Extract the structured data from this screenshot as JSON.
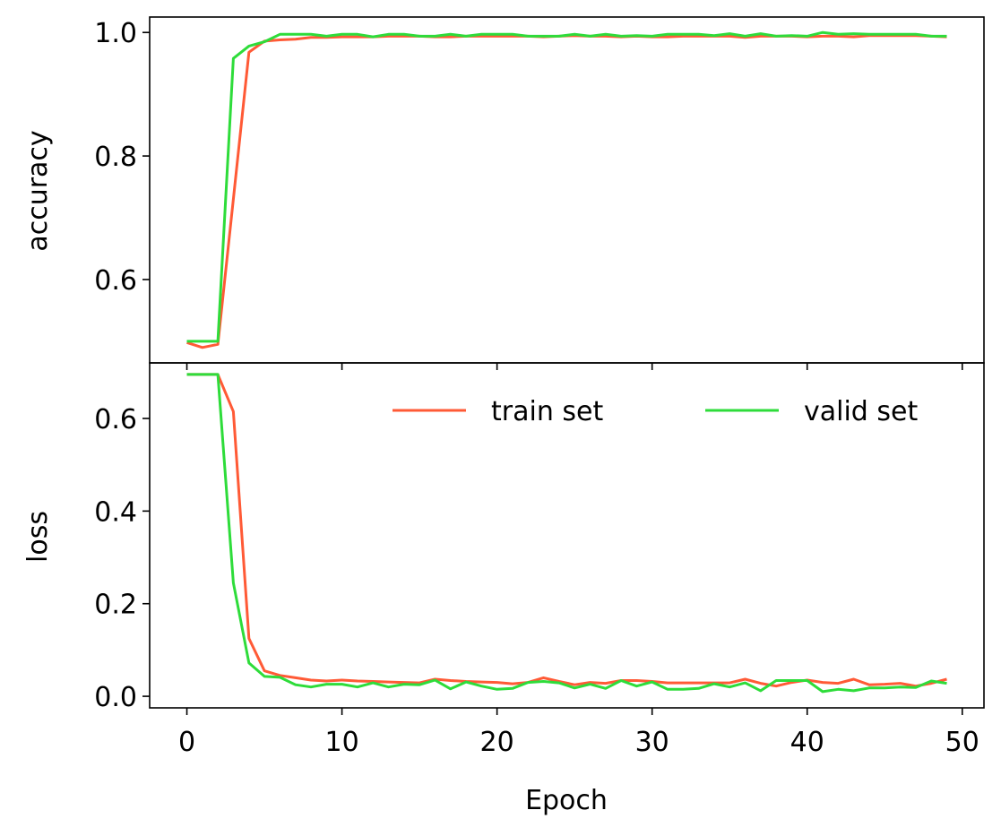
{
  "chart_data": [
    {
      "type": "line",
      "panel": "top",
      "ylabel": "accuracy",
      "xlabel": "",
      "xlim": [
        -2.4,
        51.4
      ],
      "ylim": [
        0.465,
        1.025
      ],
      "xticks": [
        0,
        10,
        20,
        30,
        40,
        50
      ],
      "xtick_labels_shown": false,
      "yticks": [
        0.6,
        0.8,
        1.0
      ],
      "ytick_labels": [
        "0.6",
        "0.8",
        "1.0"
      ],
      "grid": false,
      "series": [
        {
          "name": "train set",
          "color": "#ff5a36",
          "x": [
            0,
            1,
            2,
            3,
            4,
            5,
            6,
            7,
            8,
            9,
            10,
            11,
            12,
            13,
            14,
            15,
            16,
            17,
            18,
            19,
            20,
            21,
            22,
            23,
            24,
            25,
            26,
            27,
            28,
            29,
            30,
            31,
            32,
            33,
            34,
            35,
            36,
            37,
            38,
            39,
            40,
            41,
            42,
            43,
            44,
            45,
            46,
            47,
            48,
            49
          ],
          "y": [
            0.498,
            0.49,
            0.495,
            0.73,
            0.968,
            0.986,
            0.988,
            0.989,
            0.992,
            0.992,
            0.993,
            0.993,
            0.993,
            0.994,
            0.994,
            0.994,
            0.993,
            0.993,
            0.994,
            0.994,
            0.994,
            0.994,
            0.994,
            0.993,
            0.994,
            0.995,
            0.994,
            0.994,
            0.993,
            0.994,
            0.993,
            0.993,
            0.994,
            0.994,
            0.994,
            0.994,
            0.992,
            0.994,
            0.994,
            0.994,
            0.993,
            0.994,
            0.994,
            0.993,
            0.995,
            0.995,
            0.995,
            0.995,
            0.994,
            0.993
          ]
        },
        {
          "name": "valid set",
          "color": "#2edc3a",
          "x": [
            0,
            1,
            2,
            3,
            4,
            5,
            6,
            7,
            8,
            9,
            10,
            11,
            12,
            13,
            14,
            15,
            16,
            17,
            18,
            19,
            20,
            21,
            22,
            23,
            24,
            25,
            26,
            27,
            28,
            29,
            30,
            31,
            32,
            33,
            34,
            35,
            36,
            37,
            38,
            39,
            40,
            41,
            42,
            43,
            44,
            45,
            46,
            47,
            48,
            49
          ],
          "y": [
            0.5,
            0.5,
            0.5,
            0.958,
            0.978,
            0.985,
            0.997,
            0.997,
            0.997,
            0.994,
            0.997,
            0.997,
            0.993,
            0.997,
            0.997,
            0.994,
            0.994,
            0.997,
            0.994,
            0.997,
            0.997,
            0.997,
            0.994,
            0.994,
            0.994,
            0.997,
            0.994,
            0.997,
            0.994,
            0.995,
            0.994,
            0.997,
            0.997,
            0.997,
            0.995,
            0.998,
            0.994,
            0.998,
            0.994,
            0.995,
            0.994,
            1.0,
            0.997,
            0.998,
            0.997,
            0.997,
            0.997,
            0.997,
            0.994,
            0.994
          ]
        }
      ]
    },
    {
      "type": "line",
      "panel": "bottom",
      "ylabel": "loss",
      "xlabel": "Epoch",
      "xlim": [
        -2.4,
        51.4
      ],
      "ylim": [
        -0.025,
        0.72
      ],
      "xticks": [
        0,
        10,
        20,
        30,
        40,
        50
      ],
      "xtick_labels": [
        "0",
        "10",
        "20",
        "30",
        "40",
        "50"
      ],
      "yticks": [
        0.0,
        0.2,
        0.4,
        0.6
      ],
      "ytick_labels": [
        "0.0",
        "0.2",
        "0.4",
        "0.6"
      ],
      "grid": false,
      "legend": {
        "placement": "top-right",
        "columns": 2,
        "entries": [
          "train set",
          "valid set"
        ]
      },
      "series": [
        {
          "name": "train set",
          "color": "#ff5a36",
          "x": [
            0,
            1,
            2,
            3,
            4,
            5,
            6,
            7,
            8,
            9,
            10,
            11,
            12,
            13,
            14,
            15,
            16,
            17,
            18,
            19,
            20,
            21,
            22,
            23,
            24,
            25,
            26,
            27,
            28,
            29,
            30,
            31,
            32,
            33,
            34,
            35,
            36,
            37,
            38,
            39,
            40,
            41,
            42,
            43,
            44,
            45,
            46,
            47,
            48,
            49
          ],
          "y": [
            0.695,
            0.695,
            0.695,
            0.615,
            0.125,
            0.055,
            0.045,
            0.04,
            0.035,
            0.033,
            0.035,
            0.033,
            0.032,
            0.031,
            0.03,
            0.029,
            0.037,
            0.034,
            0.032,
            0.031,
            0.03,
            0.027,
            0.03,
            0.04,
            0.032,
            0.025,
            0.03,
            0.028,
            0.034,
            0.034,
            0.032,
            0.029,
            0.029,
            0.029,
            0.029,
            0.029,
            0.037,
            0.028,
            0.022,
            0.03,
            0.035,
            0.03,
            0.028,
            0.037,
            0.025,
            0.026,
            0.028,
            0.022,
            0.028,
            0.037
          ]
        },
        {
          "name": "valid set",
          "color": "#2edc3a",
          "x": [
            0,
            1,
            2,
            3,
            4,
            5,
            6,
            7,
            8,
            9,
            10,
            11,
            12,
            13,
            14,
            15,
            16,
            17,
            18,
            19,
            20,
            21,
            22,
            23,
            24,
            25,
            26,
            27,
            28,
            29,
            30,
            31,
            32,
            33,
            34,
            35,
            36,
            37,
            38,
            39,
            40,
            41,
            42,
            43,
            44,
            45,
            46,
            47,
            48,
            49
          ],
          "y": [
            0.695,
            0.695,
            0.695,
            0.245,
            0.072,
            0.043,
            0.041,
            0.025,
            0.02,
            0.026,
            0.026,
            0.02,
            0.029,
            0.02,
            0.026,
            0.025,
            0.035,
            0.016,
            0.031,
            0.022,
            0.015,
            0.017,
            0.03,
            0.032,
            0.029,
            0.018,
            0.026,
            0.017,
            0.034,
            0.022,
            0.031,
            0.015,
            0.015,
            0.017,
            0.027,
            0.02,
            0.029,
            0.012,
            0.034,
            0.034,
            0.034,
            0.01,
            0.015,
            0.012,
            0.018,
            0.018,
            0.02,
            0.019,
            0.033,
            0.028
          ]
        }
      ]
    }
  ]
}
